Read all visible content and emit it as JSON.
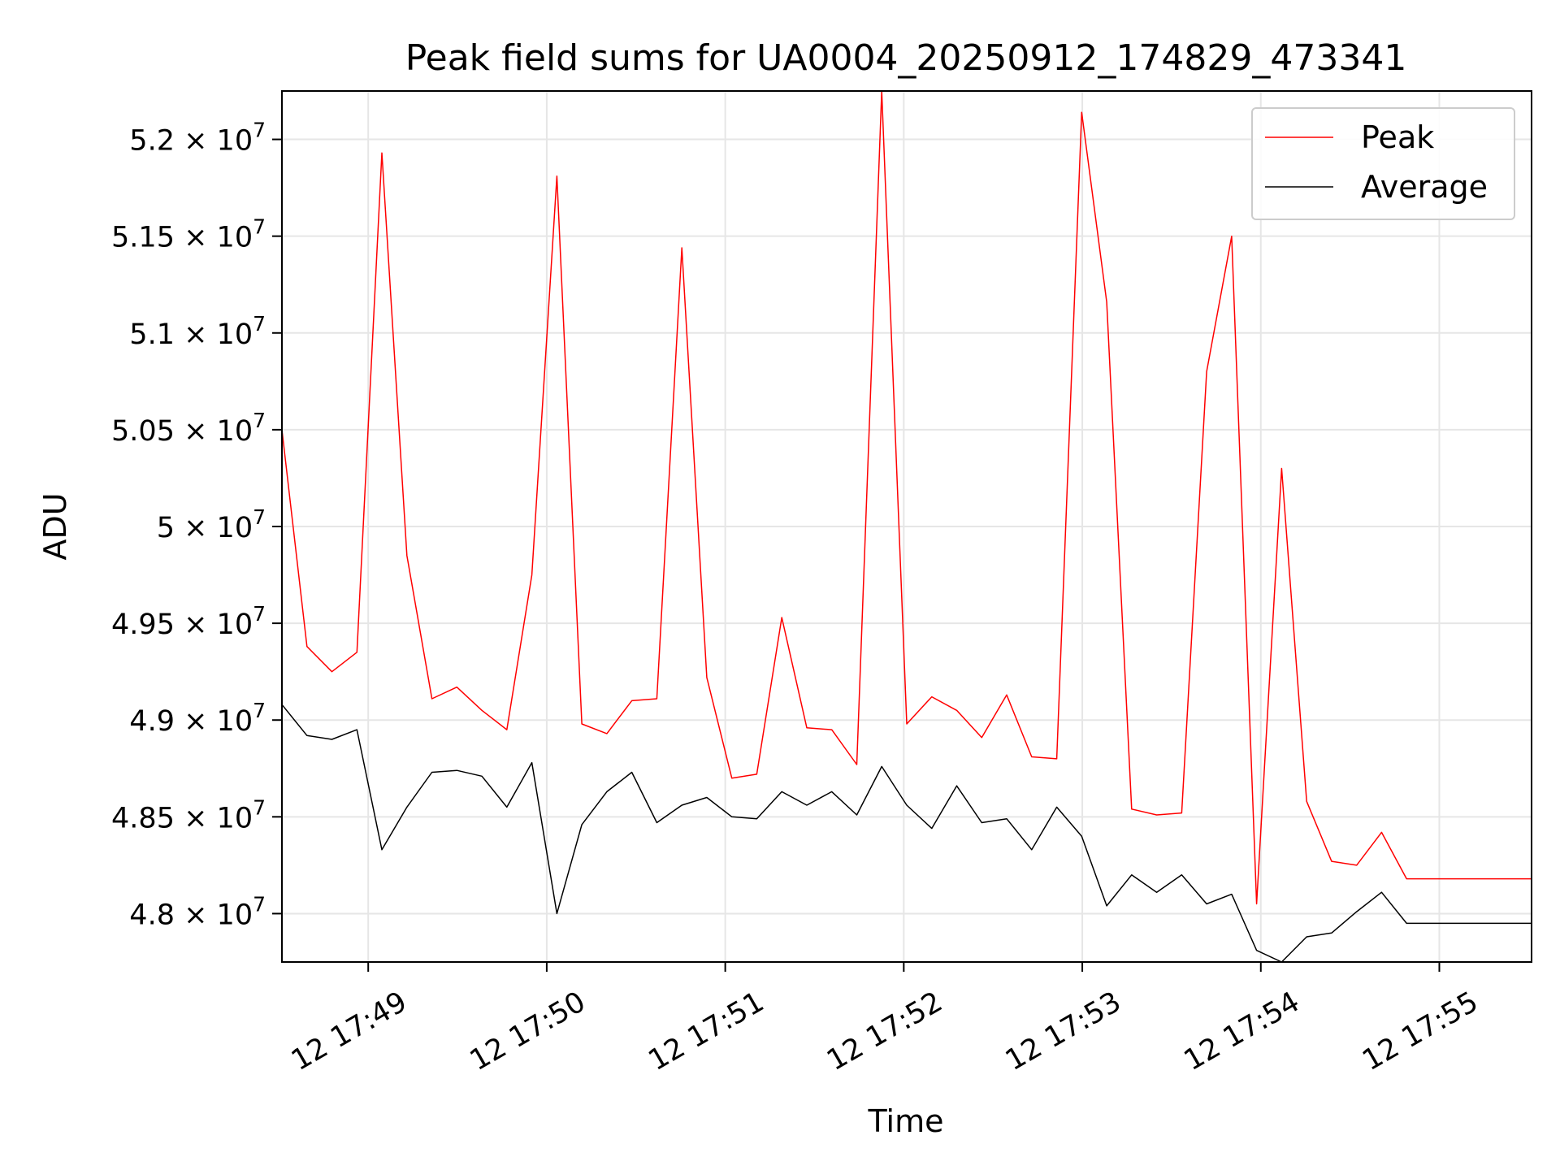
{
  "chart_data": {
    "type": "line",
    "title": "Peak field sums for UA0004_20250912_174829_473341",
    "xlabel": "Time",
    "ylabel": "ADU",
    "x_unit": "seconds after 12 17:48:00",
    "x_start_seconds": 31,
    "x_step_seconds": 8.4,
    "xlim": [
      31,
      451
    ],
    "ylim": [
      47750000,
      52250000
    ],
    "x_ticks": [
      {
        "label": "12 17:49",
        "value": 60
      },
      {
        "label": "12 17:50",
        "value": 120
      },
      {
        "label": "12 17:51",
        "value": 180
      },
      {
        "label": "12 17:52",
        "value": 240
      },
      {
        "label": "12 17:53",
        "value": 300
      },
      {
        "label": "12 17:54",
        "value": 360
      },
      {
        "label": "12 17:55",
        "value": 420
      }
    ],
    "y_ticks": [
      {
        "value": 48000000,
        "mantissa": "4.8",
        "exponent": "7"
      },
      {
        "value": 48500000,
        "mantissa": "4.85",
        "exponent": "7"
      },
      {
        "value": 49000000,
        "mantissa": "4.9",
        "exponent": "7"
      },
      {
        "value": 49500000,
        "mantissa": "4.95",
        "exponent": "7"
      },
      {
        "value": 50000000,
        "mantissa": "5",
        "exponent": "7"
      },
      {
        "value": 50500000,
        "mantissa": "5.05",
        "exponent": "7"
      },
      {
        "value": 51000000,
        "mantissa": "5.1",
        "exponent": "7"
      },
      {
        "value": 51500000,
        "mantissa": "5.15",
        "exponent": "7"
      },
      {
        "value": 52000000,
        "mantissa": "5.2",
        "exponent": "7"
      }
    ],
    "grid": true,
    "legend_position": "top-right",
    "series": [
      {
        "name": "Peak",
        "color": "#ff0000",
        "values": [
          50500000,
          49380000,
          49250000,
          49350000,
          51930000,
          49850000,
          49110000,
          49170000,
          49050000,
          48950000,
          49750000,
          51810000,
          48980000,
          48930000,
          49100000,
          49110000,
          51440000,
          49220000,
          48700000,
          48720000,
          49530000,
          48960000,
          48950000,
          48770000,
          52250000,
          48980000,
          49120000,
          49050000,
          48910000,
          49130000,
          48810000,
          48800000,
          52140000,
          51160000,
          48540000,
          48510000,
          48520000,
          50800000,
          51500000,
          48050000,
          50300000,
          48580000,
          48270000,
          48250000,
          48420000,
          48180000,
          48180000,
          48180000,
          48180000,
          48180000,
          48180000
        ]
      },
      {
        "name": "Average",
        "color": "#000000",
        "values": [
          49080000,
          48920000,
          48900000,
          48950000,
          48330000,
          48550000,
          48730000,
          48740000,
          48710000,
          48550000,
          48780000,
          48000000,
          48460000,
          48630000,
          48730000,
          48470000,
          48560000,
          48600000,
          48500000,
          48490000,
          48630000,
          48560000,
          48630000,
          48510000,
          48760000,
          48560000,
          48440000,
          48660000,
          48470000,
          48490000,
          48330000,
          48550000,
          48400000,
          48040000,
          48200000,
          48110000,
          48200000,
          48050000,
          48100000,
          47810000,
          47750000,
          47880000,
          47900000,
          48010000,
          48110000,
          47950000,
          47950000,
          47950000,
          47950000,
          47950000,
          47950000
        ]
      }
    ]
  }
}
